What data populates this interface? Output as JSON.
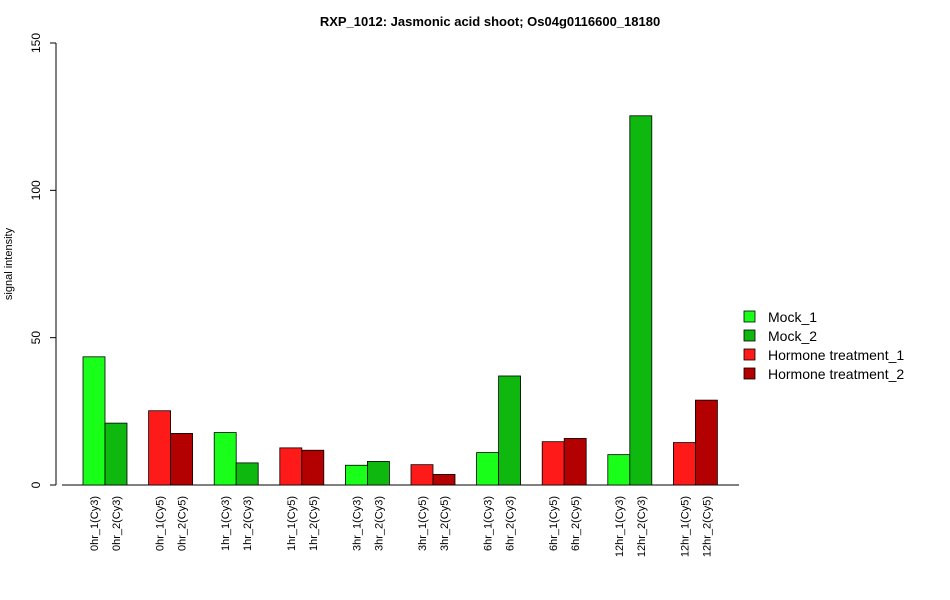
{
  "chart_data": {
    "type": "bar",
    "title": "RXP_1012: Jasmonic acid shoot; Os04g0116600_18180",
    "xlabel": "",
    "ylabel": "signal intensity",
    "ylim": [
      0,
      150
    ],
    "yticks": [
      0,
      50,
      100,
      150
    ],
    "grid": false,
    "legend_position": "right",
    "categories": [
      "0hr_1(Cy3)",
      "0hr_2(Cy3)",
      "0hr_1(Cy5)",
      "0hr_2(Cy5)",
      "1hr_1(Cy3)",
      "1hr_2(Cy3)",
      "1hr_1(Cy5)",
      "1hr_2(Cy5)",
      "3hr_1(Cy3)",
      "3hr_2(Cy3)",
      "3hr_1(Cy5)",
      "3hr_2(Cy5)",
      "6hr_1(Cy3)",
      "6hr_2(Cy3)",
      "6hr_1(Cy5)",
      "6hr_2(Cy5)",
      "12hr_1(Cy3)",
      "12hr_2(Cy3)",
      "12hr_1(Cy5)",
      "12hr_2(Cy5)"
    ],
    "values": [
      43.5,
      21.0,
      25.2,
      17.5,
      17.8,
      7.5,
      12.6,
      11.8,
      6.7,
      8.0,
      6.9,
      3.6,
      11.0,
      37.0,
      14.7,
      15.8,
      10.3,
      125.3,
      14.4,
      28.8
    ],
    "series_index": [
      0,
      1,
      2,
      3,
      0,
      1,
      2,
      3,
      0,
      1,
      2,
      3,
      0,
      1,
      2,
      3,
      0,
      1,
      2,
      3
    ],
    "series": [
      {
        "name": "Mock_1",
        "color": "#1aff1a"
      },
      {
        "name": "Mock_2",
        "color": "#0fb80f"
      },
      {
        "name": "Hormone treatment_1",
        "color": "#ff1a1a"
      },
      {
        "name": "Hormone treatment_2",
        "color": "#b30000"
      }
    ]
  }
}
